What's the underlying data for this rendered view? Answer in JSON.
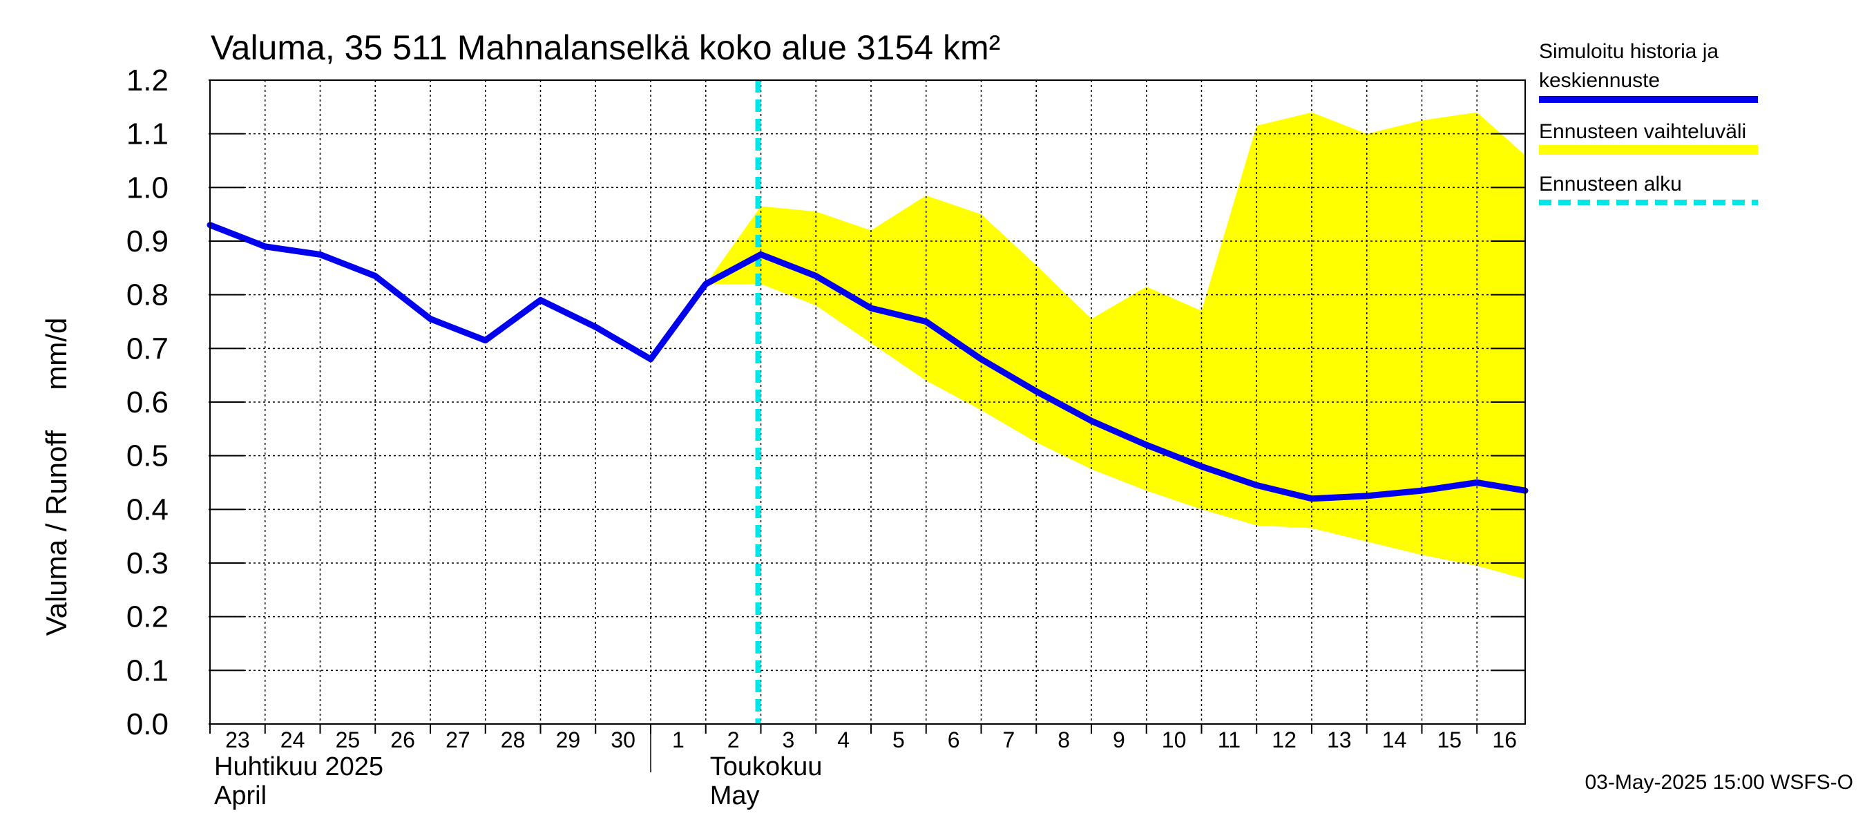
{
  "chart_data": {
    "type": "line",
    "title": "Valuma, 35 511 Mahnalanselkä koko alue 3154 km²",
    "ylabel": "Valuma / Runoff     mm/d",
    "ylim": [
      0.0,
      1.2
    ],
    "yticks": [
      "0.0",
      "0.1",
      "0.2",
      "0.3",
      "0.4",
      "0.5",
      "0.6",
      "0.7",
      "0.8",
      "0.9",
      "1.0",
      "1.1",
      "1.2"
    ],
    "xlim": [
      "2025-04-23",
      "2025-05-16 21:00"
    ],
    "x_tick_labels": [
      {
        "date": "2025-04-23",
        "label": "23"
      },
      {
        "date": "2025-04-24",
        "label": "24"
      },
      {
        "date": "2025-04-25",
        "label": "25"
      },
      {
        "date": "2025-04-26",
        "label": "26"
      },
      {
        "date": "2025-04-27",
        "label": "27"
      },
      {
        "date": "2025-04-28",
        "label": "28"
      },
      {
        "date": "2025-04-29",
        "label": "29"
      },
      {
        "date": "2025-04-30",
        "label": "30"
      },
      {
        "date": "2025-05-01",
        "label": "1"
      },
      {
        "date": "2025-05-02",
        "label": "2"
      },
      {
        "date": "2025-05-03",
        "label": "3"
      },
      {
        "date": "2025-05-04",
        "label": "4"
      },
      {
        "date": "2025-05-05",
        "label": "5"
      },
      {
        "date": "2025-05-06",
        "label": "6"
      },
      {
        "date": "2025-05-07",
        "label": "7"
      },
      {
        "date": "2025-05-08",
        "label": "8"
      },
      {
        "date": "2025-05-09",
        "label": "9"
      },
      {
        "date": "2025-05-10",
        "label": "10"
      },
      {
        "date": "2025-05-11",
        "label": "11"
      },
      {
        "date": "2025-05-12",
        "label": "12"
      },
      {
        "date": "2025-05-13",
        "label": "13"
      },
      {
        "date": "2025-05-14",
        "label": "14"
      },
      {
        "date": "2025-05-15",
        "label": "15"
      },
      {
        "date": "2025-05-16",
        "label": "16"
      }
    ],
    "month_labels": [
      {
        "date": "2025-04-23",
        "fi": "Huhtikuu  2025",
        "en": "April"
      },
      {
        "date": "2025-05-02",
        "fi": "Toukokuu",
        "en": "May"
      }
    ],
    "month_boundary": "2025-05-01",
    "forecast_start": "2025-05-03",
    "series": [
      {
        "name": "Simuloitu historia ja keskiennuste",
        "color": "#0000ee",
        "x": [
          "2025-04-23",
          "2025-04-24",
          "2025-04-25",
          "2025-04-26",
          "2025-04-27",
          "2025-04-28",
          "2025-04-29",
          "2025-04-30",
          "2025-05-01",
          "2025-05-02",
          "2025-05-03",
          "2025-05-04",
          "2025-05-05",
          "2025-05-06",
          "2025-05-07",
          "2025-05-08",
          "2025-05-09",
          "2025-05-10",
          "2025-05-11",
          "2025-05-12",
          "2025-05-13",
          "2025-05-14",
          "2025-05-15",
          "2025-05-16",
          "2025-05-16 21:00"
        ],
        "y": [
          0.93,
          0.89,
          0.875,
          0.835,
          0.755,
          0.715,
          0.79,
          0.74,
          0.68,
          0.82,
          0.875,
          0.835,
          0.775,
          0.75,
          0.68,
          0.62,
          0.565,
          0.52,
          0.48,
          0.445,
          0.42,
          0.425,
          0.435,
          0.45,
          0.435
        ]
      }
    ],
    "band": {
      "name": "Ennusteen vaihteluväli",
      "color": "#ffff00",
      "x": [
        "2025-05-02",
        "2025-05-03",
        "2025-05-04",
        "2025-05-05",
        "2025-05-06",
        "2025-05-07",
        "2025-05-08",
        "2025-05-09",
        "2025-05-10",
        "2025-05-11",
        "2025-05-12",
        "2025-05-13",
        "2025-05-14",
        "2025-05-15",
        "2025-05-16",
        "2025-05-16 21:00"
      ],
      "upper": [
        0.82,
        0.965,
        0.955,
        0.92,
        0.985,
        0.95,
        0.855,
        0.755,
        0.815,
        0.77,
        1.115,
        1.14,
        1.1,
        1.125,
        1.14,
        1.06
      ],
      "lower": [
        0.82,
        0.82,
        0.78,
        0.71,
        0.64,
        0.585,
        0.525,
        0.475,
        0.435,
        0.4,
        0.37,
        0.365,
        0.34,
        0.315,
        0.295,
        0.27
      ]
    },
    "legend": [
      {
        "label": "Simuloitu historia ja",
        "label2": "keskiennuste",
        "color": "#0000ee",
        "style": "solid"
      },
      {
        "label": "Ennusteen vaihteluväli",
        "label2": "",
        "color": "#ffff00",
        "style": "solid"
      },
      {
        "label": "Ennusteen alku",
        "label2": "",
        "color": "#00e5e5",
        "style": "dashed"
      }
    ],
    "legend_position": "right",
    "grid": true,
    "footer": "03-May-2025 15:00 WSFS-O"
  }
}
